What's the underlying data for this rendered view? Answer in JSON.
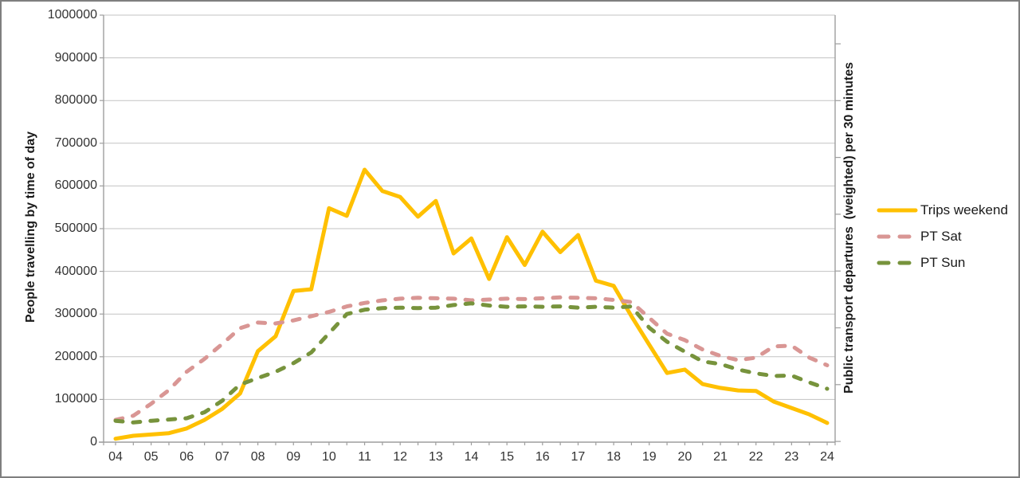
{
  "window": {
    "background": "#FFFFFF",
    "border_color": "#7F7F7F"
  },
  "colors": {
    "gridline": "#C3C3C3",
    "axis_line": "#9E9E9E",
    "tick_text": "#333333",
    "title_text": "#1A1A1A",
    "series_yellow": "#FFC000",
    "series_pink": "#D99694",
    "series_green": "#77933C"
  },
  "chart_data": {
    "type": "line",
    "title": "",
    "grid": true,
    "legend_position": "right",
    "x_start": 4,
    "x_end": 24,
    "x_step": 0.5,
    "x": [
      4,
      4.5,
      5,
      5.5,
      6,
      6.5,
      7,
      7.5,
      8,
      8.5,
      9,
      9.5,
      10,
      10.5,
      11,
      11.5,
      12,
      12.5,
      13,
      13.5,
      14,
      14.5,
      15,
      15.5,
      16,
      16.5,
      17,
      17.5,
      18,
      18.5,
      19,
      19.5,
      20,
      20.5,
      21,
      21.5,
      22,
      22.5,
      23,
      23.5,
      24
    ],
    "x_axis": {
      "tick_labels": [
        "04",
        "05",
        "06",
        "07",
        "08",
        "09",
        "10",
        "11",
        "12",
        "13",
        "14",
        "15",
        "16",
        "17",
        "18",
        "19",
        "20",
        "21",
        "22",
        "23",
        "24"
      ],
      "minor_tick_every": 0.5
    },
    "y_axis_left": {
      "label": "People travelling by time of day",
      "min": 0,
      "max": 1000000,
      "tick_step": 100000,
      "tick_labels": [
        "0",
        "100000",
        "200000",
        "300000",
        "400000",
        "500000",
        "600000",
        "700000",
        "800000",
        "900000",
        "1000000"
      ]
    },
    "y_axis_right": {
      "label": "Public transport departures  (weighted) per 30 minutes",
      "tick_labels": []
    },
    "series": [
      {
        "name": "Trips weekend",
        "color": "#FFC000",
        "style": "solid",
        "values": [
          8000,
          15000,
          18000,
          21000,
          32000,
          52000,
          78000,
          114000,
          213000,
          248000,
          354000,
          358000,
          548000,
          530000,
          638000,
          588000,
          574000,
          528000,
          565000,
          442000,
          477000,
          382000,
          480000,
          415000,
          493000,
          445000,
          485000,
          378000,
          366000,
          295000,
          228000,
          162000,
          170000,
          136000,
          127000,
          121000,
          120000,
          95000,
          80000,
          65000,
          45000
        ]
      },
      {
        "name": "PT Sat",
        "color": "#D99694",
        "style": "dashed",
        "values": [
          52000,
          62000,
          90000,
          122000,
          165000,
          195000,
          230000,
          267000,
          280000,
          278000,
          285000,
          295000,
          305000,
          318000,
          326000,
          332000,
          336000,
          338000,
          337000,
          336000,
          332000,
          334000,
          336000,
          335000,
          337000,
          339000,
          338000,
          337000,
          333000,
          328000,
          291000,
          254000,
          239000,
          217000,
          202000,
          192000,
          198000,
          224000,
          226000,
          198000,
          180000
        ]
      },
      {
        "name": "PT Sun",
        "color": "#77933C",
        "style": "dashed",
        "values": [
          50000,
          46000,
          50000,
          53000,
          56000,
          70000,
          97000,
          135000,
          150000,
          165000,
          185000,
          210000,
          255000,
          300000,
          310000,
          314000,
          315000,
          314000,
          315000,
          321000,
          325000,
          320000,
          317000,
          318000,
          317000,
          318000,
          315000,
          317000,
          315000,
          318000,
          268000,
          235000,
          212000,
          189000,
          183000,
          170000,
          161000,
          155000,
          156000,
          140000,
          125000
        ]
      }
    ]
  }
}
